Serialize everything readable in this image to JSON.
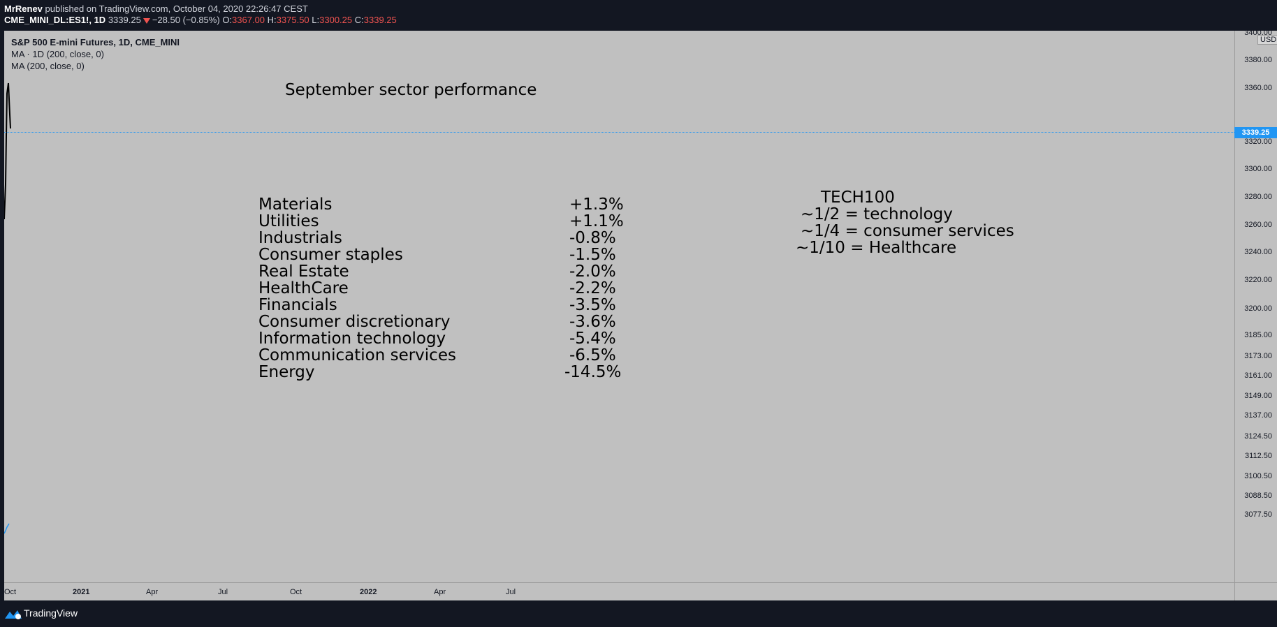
{
  "header": {
    "author": "MrRenev",
    "published": " published on TradingView.com, October 04, 2020 22:26:47 CEST",
    "symbol": "CME_MINI_DL:ES1!, 1D",
    "last": "3339.25",
    "change": "−28.50 (−0.85%)",
    "open_label": "O:",
    "open": "3367.00",
    "high_label": "H:",
    "high": "3375.50",
    "low_label": "L:",
    "low": "3300.25",
    "close_label": "C:",
    "close": "3339.25"
  },
  "legend": {
    "title": "S&P 500 E-mini Futures, 1D, CME_MINI",
    "ma1": "MA · 1D (200, close, 0)",
    "ma2": "MA (200, close, 0)"
  },
  "annotation": {
    "title": "September sector performance",
    "sectors": [
      {
        "name": "Materials",
        "value": "+1.3%"
      },
      {
        "name": "Utilities",
        "value": "+1.1%"
      },
      {
        "name": "Industrials",
        "value": "-0.8%"
      },
      {
        "name": "Consumer staples",
        "value": "-1.5%"
      },
      {
        "name": "Real Estate",
        "value": "-2.0%"
      },
      {
        "name": "HealthCare",
        "value": "-2.2%"
      },
      {
        "name": "Financials",
        "value": "-3.5%"
      },
      {
        "name": "Consumer discretionary",
        "value": "-3.6%"
      },
      {
        "name": "Information technology",
        "value": "-5.4%"
      },
      {
        "name": "Communication services",
        "value": "-6.5%"
      },
      {
        "name": "Energy",
        "value": "-14.5%"
      }
    ],
    "tech100": {
      "title": "TECH100",
      "lines": [
        "~1/2 = technology",
        "~1/4 = consumer services",
        "~1/10 = Healthcare"
      ]
    }
  },
  "price_axis": {
    "currency": "USD",
    "top_partial": "3400.00",
    "ticks": [
      "3380.00",
      "3360.00",
      "3320.00",
      "3300.00",
      "3280.00",
      "3260.00",
      "3240.00",
      "3220.00",
      "3200.00",
      "3185.00",
      "3173.00",
      "3161.00",
      "3149.00",
      "3137.00",
      "3124.50",
      "3112.50",
      "3100.50",
      "3088.50",
      "3077.50"
    ],
    "current_price": "3339.25"
  },
  "time_axis": {
    "labels": [
      "Oct",
      "2021",
      "Apr",
      "Jul",
      "Oct",
      "2022",
      "Apr",
      "Jul"
    ]
  },
  "footer": {
    "brand": "TradingView"
  },
  "colors": {
    "up": "#ef5350",
    "accent": "#2196f3",
    "chart_bg": "#c0c0c0",
    "ui_bg": "#131722"
  }
}
